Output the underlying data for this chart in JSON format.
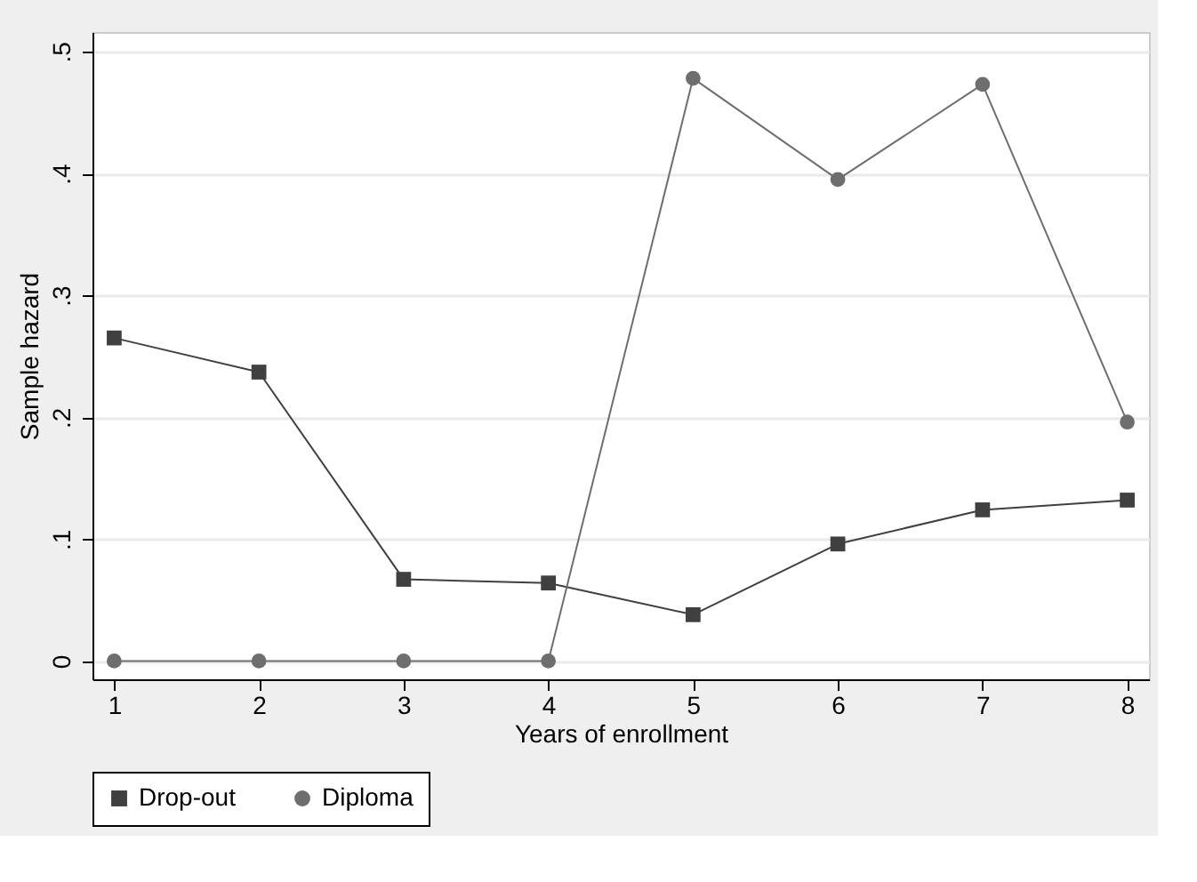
{
  "chart_data": {
    "type": "line",
    "xlabel": "Years of enrollment",
    "ylabel": "Sample hazard",
    "x": [
      1,
      2,
      3,
      4,
      5,
      6,
      7,
      8
    ],
    "series": [
      {
        "name": "Drop-out",
        "color": "#404040",
        "marker": "square",
        "values": [
          0.265,
          0.237,
          0.067,
          0.064,
          0.038,
          0.096,
          0.124,
          0.132
        ]
      },
      {
        "name": "Diploma",
        "color": "#6e6e6e",
        "marker": "circle",
        "values": [
          0,
          0,
          0,
          0,
          0.478,
          0.395,
          0.473,
          0.196
        ]
      }
    ],
    "xlim": [
      0.85,
      8.15
    ],
    "xticks": [
      1,
      2,
      3,
      4,
      5,
      6,
      7,
      8
    ],
    "ylim": [
      -0.015,
      0.516
    ],
    "yticks": [
      {
        "value": 0,
        "label": "0"
      },
      {
        "value": 0.1,
        "label": ".1"
      },
      {
        "value": 0.2,
        "label": ".2"
      },
      {
        "value": 0.3,
        "label": ".3"
      },
      {
        "value": 0.4,
        "label": ".4"
      },
      {
        "value": 0.5,
        "label": ".5"
      }
    ],
    "grid": "y",
    "legend": "bottom",
    "line_style": "solid"
  }
}
